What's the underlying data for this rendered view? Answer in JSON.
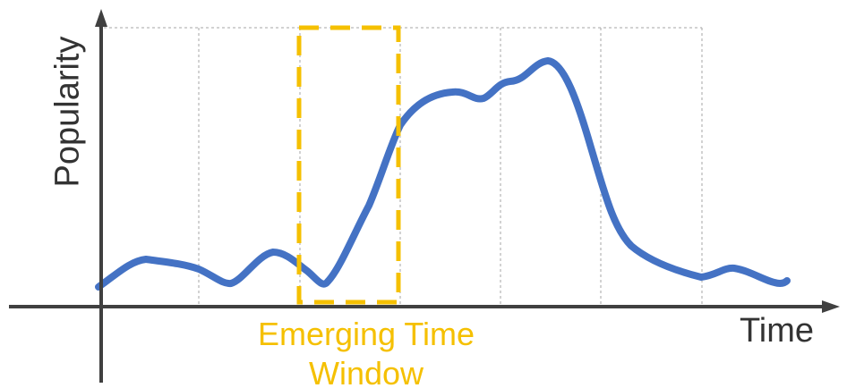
{
  "diagram": {
    "y_axis_label": "Popularity",
    "x_axis_label": "Time",
    "window_label_lines": [
      "Emerging Time",
      "Window"
    ],
    "colors": {
      "curve": "#4472c4",
      "window": "#f5c000",
      "axis": "#404040",
      "grid": "#a6a6a6",
      "text": "#333333"
    }
  }
}
